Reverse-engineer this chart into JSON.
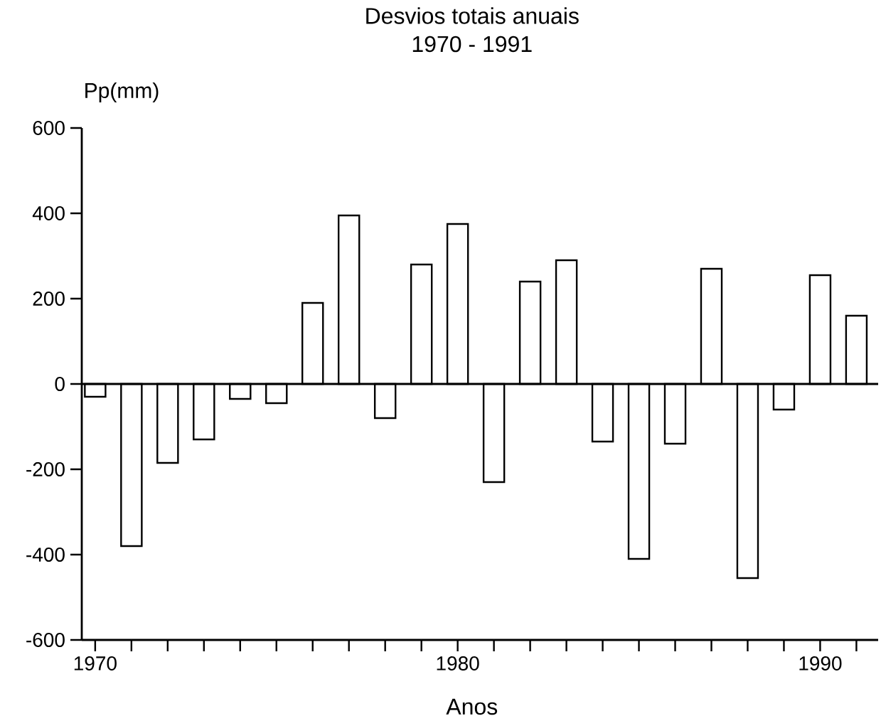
{
  "chart_data": {
    "type": "bar",
    "title": "Desvios totais anuais",
    "subtitle": "1970 - 1991",
    "xlabel": "Anos",
    "ylabel": "Pp(mm)",
    "x": [
      1970,
      1971,
      1972,
      1973,
      1974,
      1975,
      1976,
      1977,
      1978,
      1979,
      1980,
      1981,
      1982,
      1983,
      1984,
      1985,
      1986,
      1987,
      1988,
      1989,
      1990,
      1991
    ],
    "values": [
      -30,
      -380,
      -185,
      -130,
      -35,
      -45,
      190,
      395,
      -80,
      280,
      375,
      -230,
      240,
      290,
      -135,
      -410,
      -140,
      270,
      -455,
      -60,
      255,
      160
    ],
    "color": "#ffffff",
    "xlim": [
      1969.63,
      1991.6
    ],
    "ylim": [
      -600,
      600
    ],
    "xticks": [
      1970,
      {
        "value": 1971,
        "label": null
      },
      {
        "value": 1972,
        "label": null
      },
      {
        "value": 1973,
        "label": null
      },
      {
        "value": 1974,
        "label": null
      },
      {
        "value": 1975,
        "label": null
      },
      {
        "value": 1976,
        "label": null
      },
      {
        "value": 1977,
        "label": null
      },
      {
        "value": 1978,
        "label": null
      },
      {
        "value": 1979,
        "label": null
      },
      1980,
      {
        "value": 1981,
        "label": null
      },
      {
        "value": 1982,
        "label": null
      },
      {
        "value": 1983,
        "label": null
      },
      {
        "value": 1984,
        "label": null
      },
      {
        "value": 1985,
        "label": null
      },
      {
        "value": 1986,
        "label": null
      },
      {
        "value": 1987,
        "label": null
      },
      {
        "value": 1988,
        "label": null
      },
      {
        "value": 1989,
        "label": null
      },
      1990,
      {
        "value": 1991,
        "label": null
      }
    ],
    "yticks": [
      -600,
      -400,
      -200,
      0,
      200,
      400,
      600
    ],
    "ref_lines": [
      {
        "axis": "y",
        "value": 0,
        "color": "#000000"
      }
    ]
  }
}
